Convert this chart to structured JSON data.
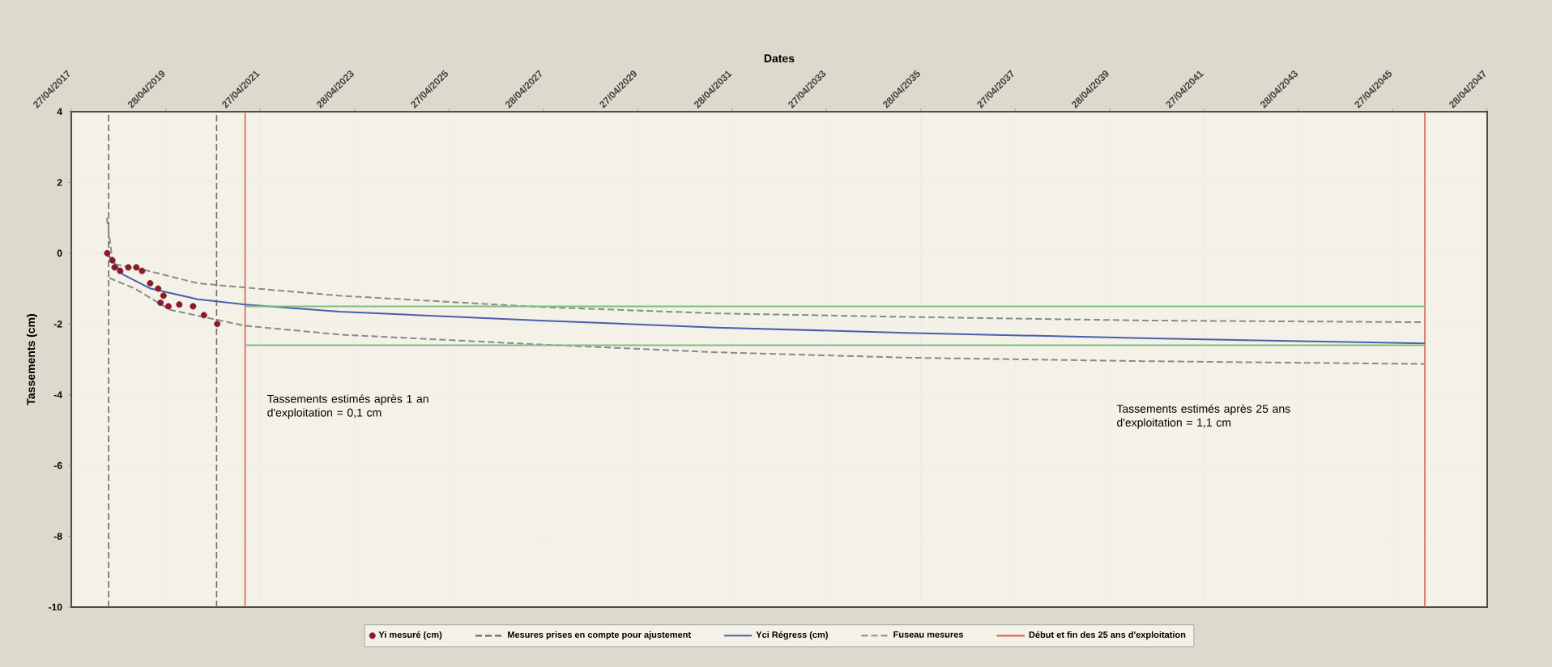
{
  "chart_data": {
    "type": "scatter",
    "xlabel": "Dates",
    "ylabel": "Tassements (cm)",
    "xlim": [
      "2017-04-27",
      "2047-04-28"
    ],
    "xticks": [
      {
        "value": "2017-04-27",
        "label": "27/04/2017"
      },
      {
        "value": "2019-04-28",
        "label": "28/04/2019"
      },
      {
        "value": "2021-04-27",
        "label": "27/04/2021"
      },
      {
        "value": "2023-04-28",
        "label": "28/04/2023"
      },
      {
        "value": "2025-04-27",
        "label": "27/04/2025"
      },
      {
        "value": "2027-04-28",
        "label": "28/04/2027"
      },
      {
        "value": "2029-04-27",
        "label": "27/04/2029"
      },
      {
        "value": "2031-04-28",
        "label": "28/04/2031"
      },
      {
        "value": "2033-04-27",
        "label": "27/04/2033"
      },
      {
        "value": "2035-04-28",
        "label": "28/04/2035"
      },
      {
        "value": "2037-04-27",
        "label": "27/04/2037"
      },
      {
        "value": "2039-04-28",
        "label": "28/04/2039"
      },
      {
        "value": "2041-04-27",
        "label": "27/04/2041"
      },
      {
        "value": "2043-04-28",
        "label": "28/04/2043"
      },
      {
        "value": "2045-04-27",
        "label": "27/04/2045"
      },
      {
        "value": "2047-04-28",
        "label": "28/04/2047"
      }
    ],
    "ylim": [
      -10,
      4
    ],
    "yticks": [
      -10,
      -8,
      -6,
      -4,
      -2,
      0,
      2,
      4
    ],
    "grid": true,
    "legend": "bottom",
    "series": [
      {
        "name": "Yi mesuré (cm)",
        "type": "scatter",
        "color": "#8b1a2b",
        "x": [
          "2018-01-30",
          "2018-03-10",
          "2018-03-28",
          "2018-05-10",
          "2018-07-12",
          "2018-09-12",
          "2018-10-26",
          "2018-12-28",
          "2019-02-28",
          "2019-03-18",
          "2019-04-10",
          "2019-05-18",
          "2019-08-10",
          "2019-11-25",
          "2020-02-17",
          "2020-05-30"
        ],
        "values": [
          0,
          -0.2,
          -0.4,
          -0.5,
          -0.4,
          -0.4,
          -0.5,
          -0.85,
          -1.0,
          -1.4,
          -1.2,
          -1.5,
          -1.45,
          -1.5,
          -1.75,
          -2.0
        ]
      },
      {
        "name": "Yci  Régress (cm)",
        "type": "line",
        "line_style": "solid",
        "color": "#4a5fa8",
        "x": [
          "2018-01-27",
          "2018-06-01",
          "2019-01-01",
          "2020-01-01",
          "2021-01-01",
          "2023-01-01",
          "2027-04-01",
          "2031-01-01",
          "2035-01-01",
          "2040-01-01",
          "2046-01-01"
        ],
        "values": [
          0,
          -0.6,
          -1.0,
          -1.3,
          -1.45,
          -1.65,
          -1.9,
          -2.1,
          -2.25,
          -2.4,
          -2.55
        ]
      },
      {
        "name": "Fuseau mesures",
        "type": "line",
        "line_style": "dashed",
        "color": "#8a8a8a",
        "x": [
          "2018-01-27",
          "2018-03-15",
          "2018-12-15",
          "2020-01-01",
          "2021-01-01",
          "2023-01-01",
          "2027-04-01",
          "2031-01-01",
          "2035-01-01",
          "2040-01-01",
          "2046-01-01"
        ],
        "values": [
          1.0,
          -0.3,
          -0.5,
          -0.85,
          -0.97,
          -1.2,
          -1.52,
          -1.7,
          -1.8,
          -1.9,
          -1.95
        ]
      },
      {
        "type": "line",
        "line_style": "dashed",
        "color": "#8a8a8a",
        "x": [
          "2018-02-15",
          "2018-09-01",
          "2019-06-01",
          "2021-01-01",
          "2023-01-01",
          "2027-04-01",
          "2031-01-01",
          "2035-01-01",
          "2040-01-01",
          "2046-01-01"
        ],
        "values": [
          -0.7,
          -1.0,
          -1.6,
          -2.05,
          -2.3,
          -2.58,
          -2.8,
          -2.95,
          -3.05,
          -3.13
        ]
      },
      {
        "type": "line",
        "line_style": "solid",
        "color": "#7fbf7f",
        "x": [
          "2021-01-01",
          "2046-01-01"
        ],
        "values": [
          -1.5,
          -1.5
        ]
      },
      {
        "type": "line",
        "line_style": "solid",
        "color": "#7fbf7f",
        "x": [
          "2021-01-01",
          "2046-01-01"
        ],
        "values": [
          -2.6,
          -2.6
        ]
      }
    ],
    "ref_lines": [
      {
        "axis": "x",
        "value": "2018-02-10",
        "label": "Mesures prises en compte pour ajustement",
        "color": "#6b6b6b",
        "line_style": "dashed"
      },
      {
        "axis": "x",
        "value": "2020-05-25",
        "color": "#6b6b6b",
        "line_style": "dashed"
      },
      {
        "axis": "x",
        "value": "2021-01-01",
        "label": "Début et fin des 25 ans d'exploitation",
        "color": "#d9634a",
        "line_style": "solid"
      },
      {
        "axis": "x",
        "value": "2046-01-01",
        "color": "#d9634a",
        "line_style": "solid"
      }
    ],
    "annotations": [
      "Tassements estimés après 1 an d'exploitation = 0,1 cm",
      "Tassements estimés après 25 ans d'exploitation = 1,1 cm"
    ]
  }
}
